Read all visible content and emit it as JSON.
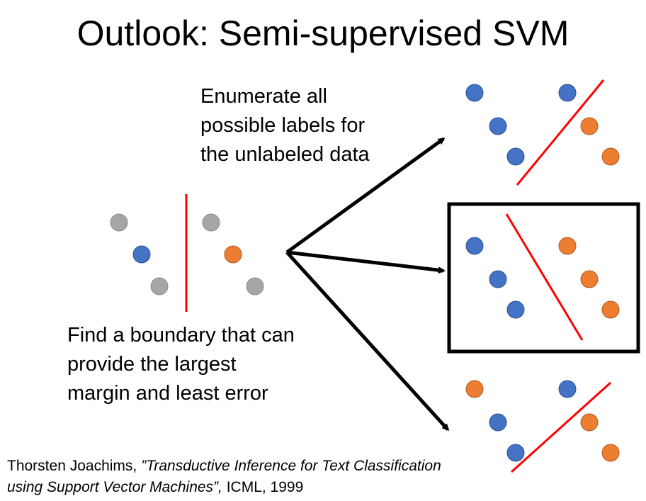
{
  "title": "Outlook: Semi-supervised SVM",
  "captions": {
    "enumerate": "Enumerate all\npossible labels for\nthe unlabeled data",
    "boundary": "Find a boundary that can\nprovide the largest\nmargin and least error"
  },
  "citation": {
    "author": "Thorsten Joachims, ",
    "paper_title": "”Transductive Inference for Text Classification using Support Vector Machines”,",
    "venue": " ICML, 1999"
  },
  "colors": {
    "unlabeled": "#A6A6A6",
    "class_blue": "#4472C4",
    "class_orange": "#ED7D31",
    "boundary": "#FF0000",
    "arrow": "#000000",
    "highlight_box": "#000000"
  },
  "panels": {
    "source": {
      "labels": [
        "unlabeled",
        "unlabeled",
        "class_blue",
        "class_orange",
        "unlabeled",
        "unlabeled"
      ]
    },
    "option_top": {
      "labels": [
        "class_blue",
        "class_blue",
        "class_blue",
        "class_orange",
        "class_blue",
        "class_orange"
      ]
    },
    "option_middle": {
      "labels": [
        "class_blue",
        "class_orange",
        "class_blue",
        "class_orange",
        "class_blue",
        "class_orange"
      ],
      "selected": true
    },
    "option_bottom": {
      "labels": [
        "class_orange",
        "class_blue",
        "class_blue",
        "class_orange",
        "class_blue",
        "class_orange"
      ]
    }
  }
}
